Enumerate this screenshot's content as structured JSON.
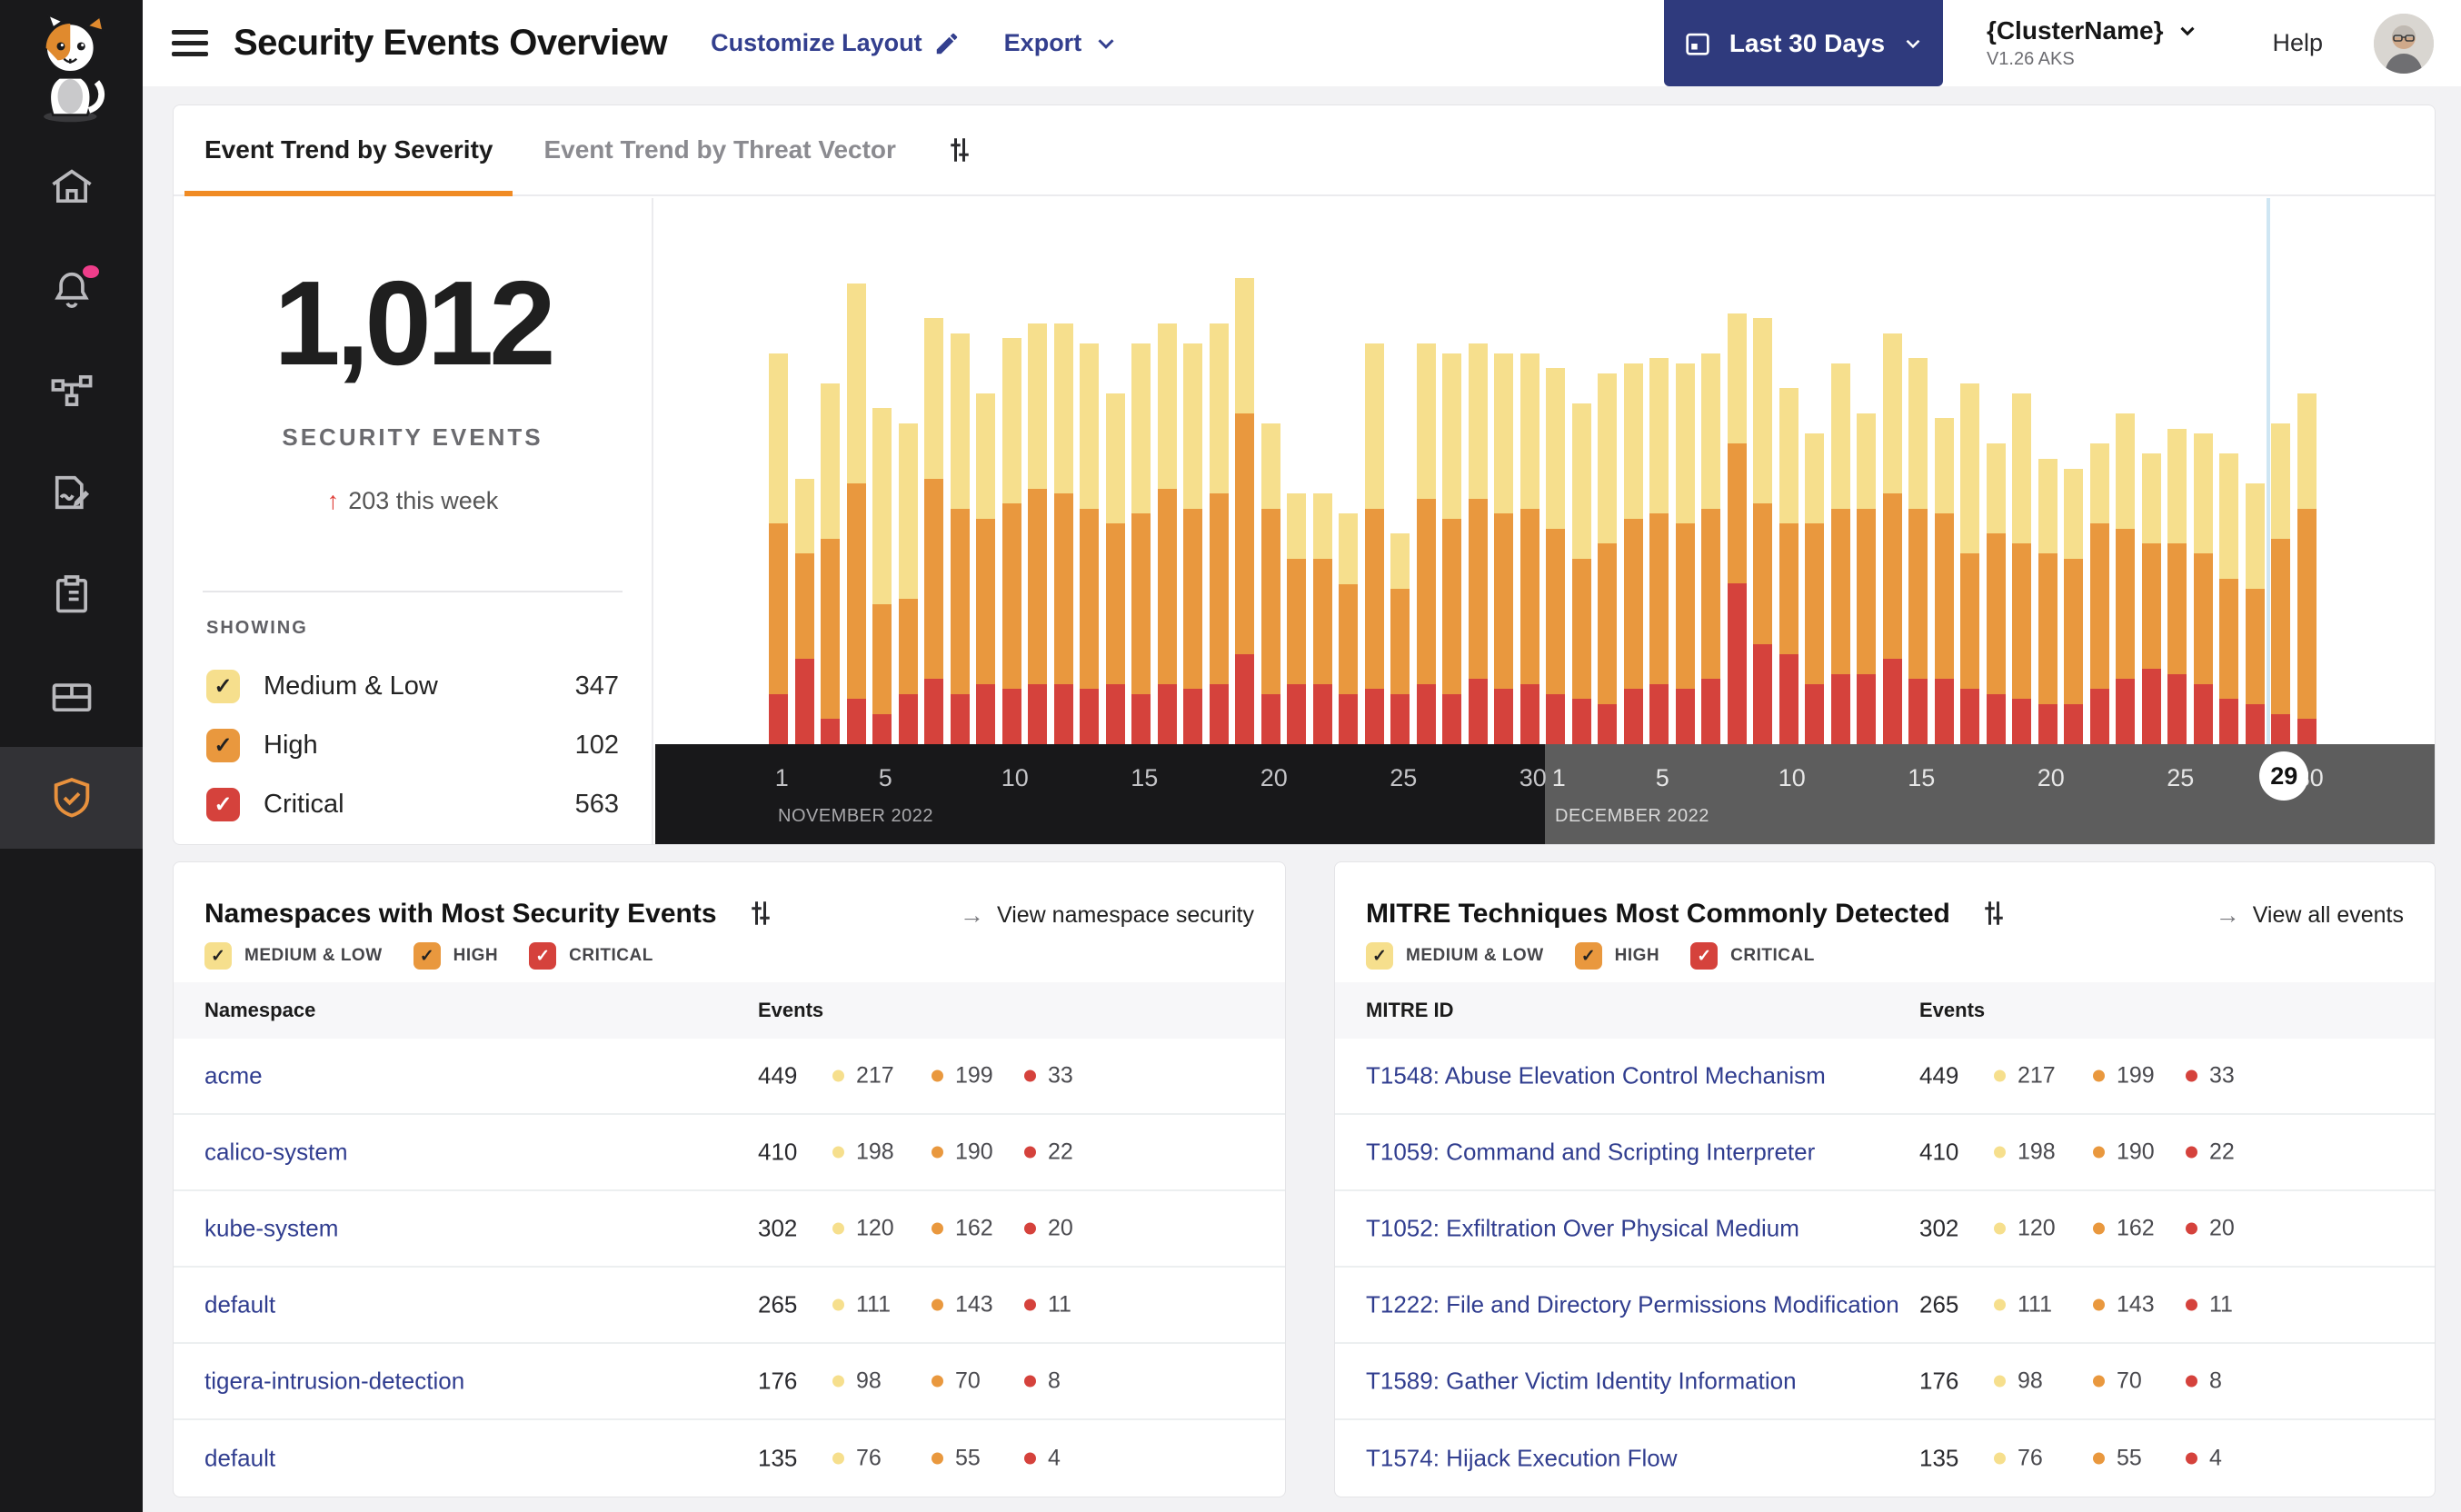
{
  "colors": {
    "severity_medium": "#f6df8d",
    "severity_high": "#e9983e",
    "severity_critical": "#d5423c",
    "check_dark": "#222222",
    "check_light": "#ffffff",
    "accent_orange": "#f08b24",
    "navy": "#2f3a7d",
    "link_blue": "#303d8f",
    "notification_pink": "#ee3d8a"
  },
  "header": {
    "title": "Security Events Overview",
    "customize_label": "Customize Layout",
    "export_label": "Export",
    "date_range": "Last 30 Days",
    "cluster": "{ClusterName}",
    "cluster_sub": "V1.26 AKS",
    "help": "Help"
  },
  "sidebar": {
    "items": [
      "home",
      "alerts",
      "service-graph",
      "policies",
      "compliance-reports",
      "workloads",
      "threat-defense"
    ]
  },
  "tabs": {
    "severity": "Event Trend by Severity",
    "threat_vector": "Event Trend by Threat Vector"
  },
  "stats": {
    "total": "1,012",
    "label": "SECURITY EVENTS",
    "delta": "203 this week",
    "showing_label": "SHOWING",
    "items": [
      {
        "label": "Medium & Low",
        "count": "347"
      },
      {
        "label": "High",
        "count": "102"
      },
      {
        "label": "Critical",
        "count": "563"
      }
    ]
  },
  "chart_data": {
    "type": "bar",
    "stacked": true,
    "categories": [
      "Nov 1",
      "Nov 2",
      "Nov 3",
      "Nov 4",
      "Nov 5",
      "Nov 6",
      "Nov 7",
      "Nov 8",
      "Nov 9",
      "Nov 10",
      "Nov 11",
      "Nov 12",
      "Nov 13",
      "Nov 14",
      "Nov 15",
      "Nov 16",
      "Nov 17",
      "Nov 18",
      "Nov 19",
      "Nov 20",
      "Nov 21",
      "Nov 22",
      "Nov 23",
      "Nov 24",
      "Nov 25",
      "Nov 26",
      "Nov 27",
      "Nov 28",
      "Nov 29",
      "Nov 30",
      "Dec 1",
      "Dec 2",
      "Dec 3",
      "Dec 4",
      "Dec 5",
      "Dec 6",
      "Dec 7",
      "Dec 8",
      "Dec 9",
      "Dec 10",
      "Dec 11",
      "Dec 12",
      "Dec 13",
      "Dec 14",
      "Dec 15",
      "Dec 16",
      "Dec 17",
      "Dec 18",
      "Dec 19",
      "Dec 20",
      "Dec 21",
      "Dec 22",
      "Dec 23",
      "Dec 24",
      "Dec 25",
      "Dec 26",
      "Dec 27",
      "Dec 28",
      "Dec 29",
      "Dec 30"
    ],
    "series": [
      {
        "name": "Critical",
        "color": "#d5423c",
        "values": [
          10,
          17,
          5,
          9,
          6,
          10,
          13,
          10,
          12,
          11,
          12,
          12,
          11,
          12,
          10,
          12,
          11,
          12,
          18,
          10,
          12,
          12,
          10,
          11,
          10,
          12,
          10,
          13,
          11,
          12,
          10,
          9,
          8,
          11,
          12,
          11,
          13,
          32,
          20,
          18,
          12,
          14,
          14,
          17,
          13,
          13,
          11,
          10,
          9,
          8,
          8,
          11,
          13,
          15,
          14,
          12,
          9,
          8,
          6,
          5
        ]
      },
      {
        "name": "High",
        "color": "#e9983e",
        "values": [
          34,
          21,
          36,
          43,
          22,
          19,
          40,
          37,
          33,
          37,
          39,
          38,
          36,
          32,
          36,
          39,
          36,
          38,
          48,
          37,
          25,
          25,
          22,
          36,
          21,
          37,
          35,
          36,
          35,
          35,
          33,
          28,
          32,
          34,
          34,
          33,
          34,
          28,
          28,
          26,
          32,
          33,
          33,
          33,
          34,
          33,
          27,
          32,
          31,
          30,
          29,
          33,
          30,
          25,
          26,
          26,
          24,
          23,
          35,
          42
        ]
      },
      {
        "name": "Medium & Low",
        "color": "#f6df8d",
        "values": [
          34,
          15,
          31,
          40,
          39,
          35,
          32,
          35,
          25,
          33,
          33,
          34,
          33,
          26,
          34,
          33,
          33,
          34,
          27,
          17,
          13,
          13,
          14,
          33,
          11,
          31,
          33,
          31,
          32,
          31,
          32,
          31,
          34,
          31,
          31,
          32,
          31,
          26,
          37,
          27,
          18,
          29,
          19,
          32,
          30,
          19,
          34,
          18,
          30,
          19,
          18,
          16,
          23,
          18,
          23,
          24,
          25,
          21,
          23,
          23
        ]
      }
    ],
    "x_axis": {
      "months": [
        {
          "label": "NOVEMBER 2022",
          "days": 30,
          "ticks": [
            1,
            5,
            10,
            15,
            20,
            25,
            30
          ]
        },
        {
          "label": "DECEMBER 2022",
          "days": 30,
          "ticks": [
            1,
            5,
            10,
            15,
            20,
            25,
            30
          ]
        }
      ],
      "current_day": {
        "month_index": 1,
        "day": 29
      }
    },
    "legend_position": "left-panel",
    "grid": false
  },
  "namespaces_card": {
    "title": "Namespaces with Most Security Events",
    "link_label": "View namespace security",
    "arrow": "→",
    "filters": [
      "MEDIUM & LOW",
      "HIGH",
      "CRITICAL"
    ],
    "columns": [
      "Namespace",
      "Events"
    ],
    "rows": [
      {
        "name": "acme",
        "total": "449",
        "medium": "217",
        "high": "199",
        "critical": "33"
      },
      {
        "name": "calico-system",
        "total": "410",
        "medium": "198",
        "high": "190",
        "critical": "22"
      },
      {
        "name": "kube-system",
        "total": "302",
        "medium": "120",
        "high": "162",
        "critical": "20"
      },
      {
        "name": "default",
        "total": "265",
        "medium": "111",
        "high": "143",
        "critical": "11"
      },
      {
        "name": "tigera-intrusion-detection",
        "total": "176",
        "medium": "98",
        "high": "70",
        "critical": "8"
      },
      {
        "name": "default",
        "total": "135",
        "medium": "76",
        "high": "55",
        "critical": "4"
      }
    ]
  },
  "mitre_card": {
    "title": "MITRE Techniques Most Commonly Detected",
    "link_label": "View all events",
    "arrow": "→",
    "filters": [
      "MEDIUM & LOW",
      "HIGH",
      "CRITICAL"
    ],
    "columns": [
      "MITRE ID",
      "Events"
    ],
    "rows": [
      {
        "name": "T1548: Abuse Elevation Control Mechanism",
        "total": "449",
        "medium": "217",
        "high": "199",
        "critical": "33"
      },
      {
        "name": "T1059: Command and Scripting Interpreter",
        "total": "410",
        "medium": "198",
        "high": "190",
        "critical": "22"
      },
      {
        "name": "T1052: Exfiltration Over Physical Medium",
        "total": "302",
        "medium": "120",
        "high": "162",
        "critical": "20"
      },
      {
        "name": "T1222: File and Directory Permissions Modification",
        "total": "265",
        "medium": "111",
        "high": "143",
        "critical": "11"
      },
      {
        "name": "T1589: Gather Victim Identity Information",
        "total": "176",
        "medium": "98",
        "high": "70",
        "critical": "8"
      },
      {
        "name": "T1574: Hijack Execution Flow",
        "total": "135",
        "medium": "76",
        "high": "55",
        "critical": "4"
      }
    ]
  }
}
